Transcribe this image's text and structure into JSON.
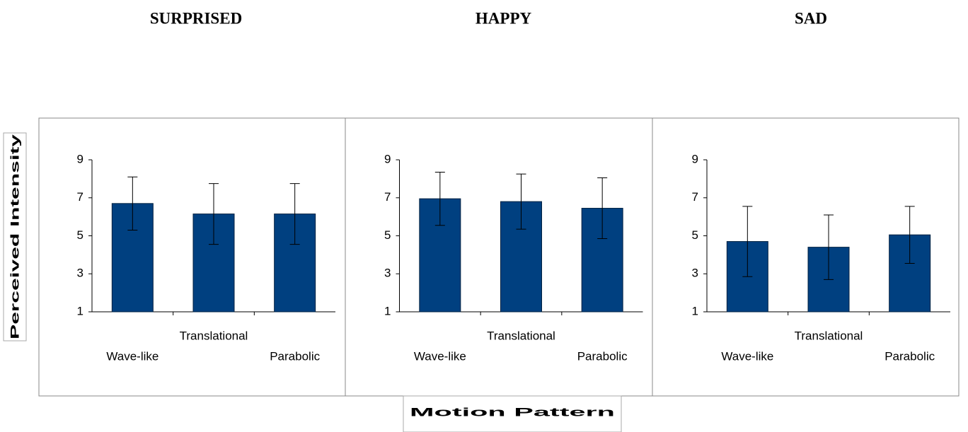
{
  "ylabel": "Perceived Intensity",
  "xlabel": "Motion Pattern",
  "chart_data": [
    {
      "type": "bar",
      "title": "SURPRISED",
      "categories": [
        "Wave-like",
        "Translational",
        "Parabolic"
      ],
      "values": [
        6.7,
        6.15,
        6.15
      ],
      "errors": [
        1.4,
        1.6,
        1.6
      ],
      "color": "#004080",
      "ylim": [
        1,
        9
      ],
      "yticks": [
        1,
        3,
        5,
        7,
        9
      ]
    },
    {
      "type": "bar",
      "title": "HAPPY",
      "categories": [
        "Wave-like",
        "Translational",
        "Parabolic"
      ],
      "values": [
        6.95,
        6.8,
        6.45
      ],
      "errors": [
        1.4,
        1.45,
        1.6
      ],
      "color": "#004080",
      "ylim": [
        1,
        9
      ],
      "yticks": [
        1,
        3,
        5,
        7,
        9
      ]
    },
    {
      "type": "bar",
      "title": "SAD",
      "categories": [
        "Wave-like",
        "Translational",
        "Parabolic"
      ],
      "values": [
        4.7,
        4.4,
        5.05
      ],
      "errors": [
        1.85,
        1.7,
        1.5
      ],
      "color": "#004080",
      "ylim": [
        1,
        9
      ],
      "yticks": [
        1,
        3,
        5,
        7,
        9
      ]
    }
  ]
}
